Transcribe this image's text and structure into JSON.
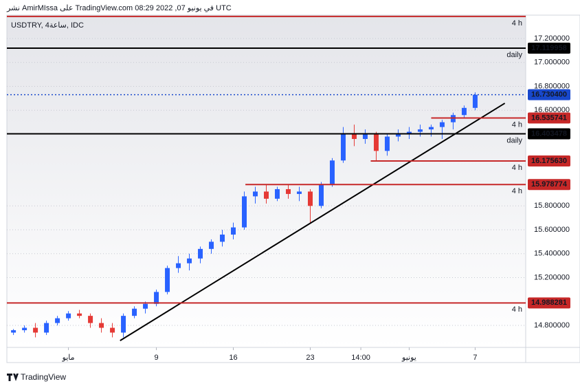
{
  "header": "نشر AmirMIssa على TradingView.com في يونيو 07, 2022 08:29 UTC",
  "footer": {
    "brand": "TradingView"
  },
  "chart_data": {
    "type": "candlestick",
    "title": "USDTRY, 4ساعة, IDC",
    "up_color": "#2962ff",
    "down_color": "#e53935",
    "xlim": [
      -4.6,
      42.6
    ],
    "ylim": [
      14.616,
      17.396
    ],
    "grid": true,
    "xticks": [
      {
        "value": 1,
        "label": "مايو"
      },
      9,
      16,
      23,
      {
        "value": 27.6,
        "label": "14:00"
      },
      {
        "value": 32,
        "label": "يونيو"
      },
      7.0001
    ],
    "yticks": [
      {
        "value": 14.8,
        "label": "14.800000"
      },
      {
        "value": 15.2,
        "label": "15.200000"
      },
      {
        "value": 15.4,
        "label": "15.400000"
      },
      {
        "value": 15.6,
        "label": "15.600000"
      },
      {
        "value": 15.8,
        "label": "15.800000"
      },
      {
        "value": 16.6,
        "label": "16.600000"
      },
      {
        "value": 16.8,
        "label": "16.800000"
      },
      {
        "value": 17.0,
        "label": "17.000000"
      },
      {
        "value": 17.2,
        "label": "17.200000"
      }
    ],
    "x": [
      -4,
      -3,
      -2,
      -1,
      0,
      1,
      2,
      3,
      4,
      5,
      6,
      7,
      8,
      9,
      10,
      11,
      12,
      13,
      14,
      15,
      16,
      17,
      18,
      19,
      20,
      21,
      22,
      23,
      24,
      25,
      26,
      27,
      28,
      29,
      30,
      31,
      32,
      33,
      34,
      35,
      36,
      37,
      38
    ],
    "open": [
      14.74,
      14.76,
      14.78,
      14.74,
      14.82,
      14.86,
      14.9,
      14.88,
      14.82,
      14.78,
      14.74,
      14.88,
      14.94,
      14.98,
      15.08,
      15.28,
      15.32,
      15.36,
      15.44,
      15.5,
      15.56,
      15.62,
      15.88,
      15.92,
      15.86,
      15.94,
      15.9,
      15.92,
      15.8,
      15.98,
      16.18,
      16.4,
      16.36,
      16.4,
      16.26,
      16.38,
      16.4,
      16.42,
      16.44,
      16.46,
      16.5,
      16.56,
      16.62
    ],
    "high": [
      14.77,
      14.8,
      14.82,
      14.84,
      14.88,
      14.92,
      14.93,
      14.9,
      14.86,
      14.82,
      14.9,
      14.96,
      15.0,
      15.1,
      15.3,
      15.38,
      15.4,
      15.46,
      15.52,
      15.6,
      15.66,
      15.92,
      15.96,
      15.98,
      15.96,
      15.98,
      15.96,
      15.94,
      16.0,
      16.2,
      16.46,
      16.48,
      16.44,
      16.42,
      16.4,
      16.44,
      16.46,
      16.48,
      16.48,
      16.52,
      16.58,
      16.64,
      16.75
    ],
    "low": [
      14.72,
      14.74,
      14.7,
      14.72,
      14.8,
      14.84,
      14.86,
      14.78,
      14.74,
      14.7,
      14.7,
      14.86,
      14.9,
      14.96,
      15.06,
      15.24,
      15.26,
      15.32,
      15.4,
      15.46,
      15.52,
      15.6,
      15.82,
      15.82,
      15.84,
      15.86,
      15.84,
      15.66,
      15.78,
      15.96,
      16.16,
      16.3,
      16.32,
      16.18,
      16.22,
      16.34,
      16.36,
      16.38,
      16.38,
      16.36,
      16.44,
      16.54,
      16.6
    ],
    "close": [
      14.76,
      14.78,
      14.74,
      14.82,
      14.86,
      14.9,
      14.88,
      14.82,
      14.78,
      14.74,
      14.88,
      14.94,
      14.98,
      15.08,
      15.28,
      15.32,
      15.36,
      15.44,
      15.5,
      15.56,
      15.62,
      15.88,
      15.92,
      15.86,
      15.94,
      15.9,
      15.92,
      15.8,
      15.98,
      16.18,
      16.4,
      16.36,
      16.4,
      16.26,
      16.38,
      16.4,
      16.42,
      16.44,
      16.46,
      16.5,
      16.56,
      16.62,
      16.73
    ],
    "levels": [
      {
        "value": 17.385,
        "tag": "4 h",
        "color": "#c62828",
        "style": "solid"
      },
      {
        "value": 17.119958,
        "label": "17.119958",
        "tag": "daily",
        "color": "#000000",
        "style": "solid"
      },
      {
        "value": 16.7304,
        "label": "16.730400",
        "color": "#1848cc",
        "style": "dotted"
      },
      {
        "value": 16.535741,
        "label": "16.535741",
        "tag": "4 h",
        "color": "#c62828",
        "style": "solid",
        "x_start": 34
      },
      {
        "value": 16.403478,
        "label": "16.403478",
        "tag": "daily",
        "color": "#000000",
        "style": "solid"
      },
      {
        "value": 16.17563,
        "label": "16.175630",
        "tag": "4 h",
        "color": "#c62828",
        "style": "solid",
        "x_start": 28.5
      },
      {
        "value": 15.978774,
        "label": "15.978774",
        "tag": "4 h",
        "color": "#c62828",
        "style": "solid",
        "x_start": 17.1
      },
      {
        "value": 14.988281,
        "label": "14.988281",
        "tag": "4 h",
        "color": "#c62828",
        "style": "solid"
      }
    ],
    "trendline": {
      "x": [
        5.7,
        40.7
      ],
      "y": [
        14.673,
        16.659
      ],
      "color": "#000000"
    }
  }
}
